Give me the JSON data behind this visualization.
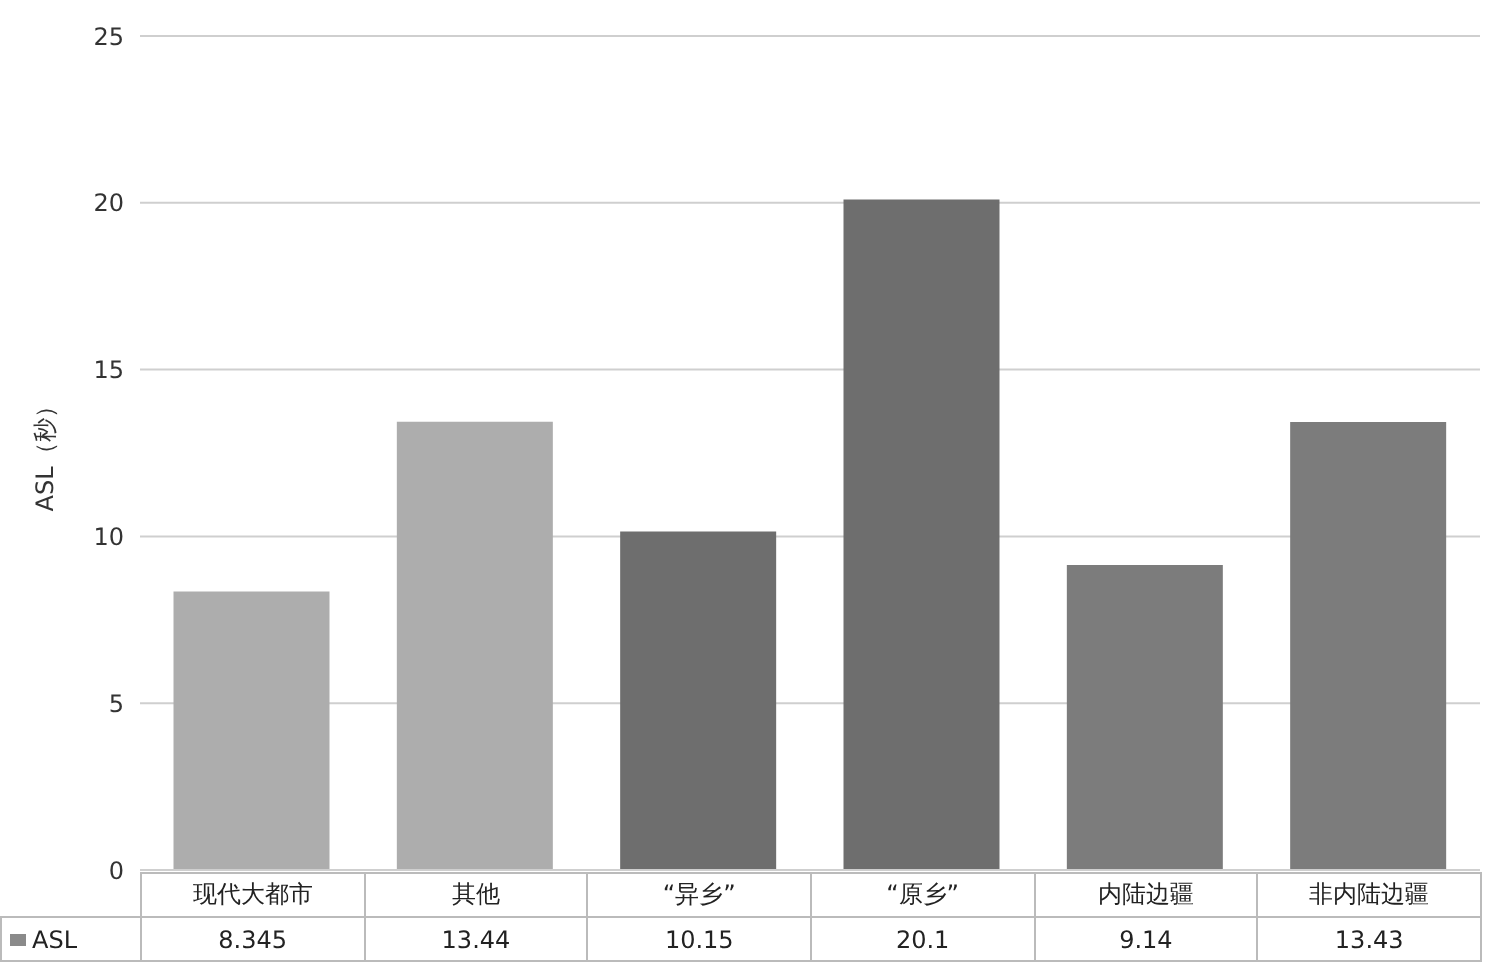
{
  "chart_data": {
    "type": "bar",
    "ylabel": "ASL（秒）",
    "categories": [
      "现代大都市",
      "其他",
      "“异乡”",
      "“原乡”",
      "内陆边疆",
      "非内陆边疆"
    ],
    "series": [
      {
        "name": "ASL",
        "color": "#8a8a8a",
        "colors": [
          "#adadad",
          "#adadad",
          "#6e6e6e",
          "#6e6e6e",
          "#7c7c7c",
          "#7c7c7c"
        ],
        "values": [
          8.345,
          13.44,
          10.15,
          20.1,
          9.14,
          13.43
        ]
      }
    ],
    "ylim": [
      0,
      25
    ],
    "yticks": [
      0,
      5,
      10,
      15,
      20,
      25
    ],
    "grid": "y",
    "data_labels": true,
    "legend": "bottom"
  }
}
